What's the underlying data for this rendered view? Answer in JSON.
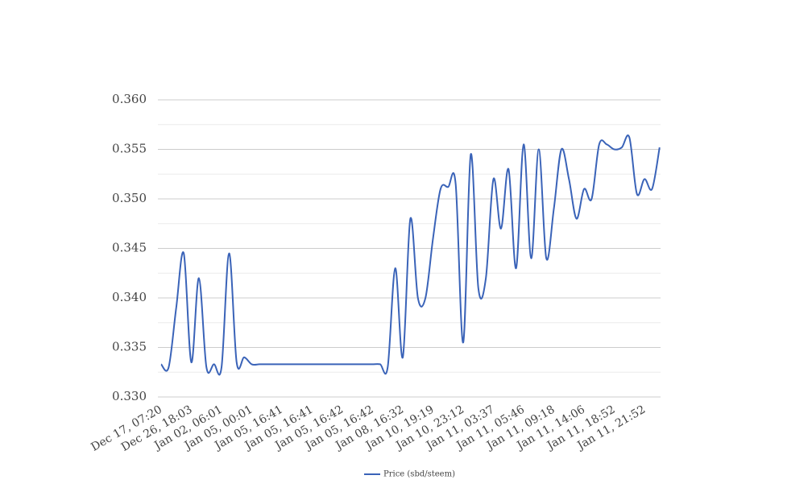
{
  "chart_data": {
    "type": "line",
    "categories": [
      "Dec 17, 07:20",
      null,
      null,
      null,
      "Dec 26, 18:03",
      null,
      null,
      null,
      "Jan 02, 06:01",
      null,
      null,
      null,
      "Jan 05, 00:01",
      null,
      null,
      null,
      "Jan 05, 16:41",
      null,
      null,
      null,
      "Jan 05, 16:41",
      null,
      null,
      null,
      "Jan 05, 16:42",
      null,
      null,
      null,
      "Jan 05, 16:42",
      null,
      null,
      null,
      "Jan 08, 16:32",
      null,
      null,
      null,
      "Jan 10, 19:19",
      null,
      null,
      null,
      "Jan 10, 23:12",
      null,
      null,
      null,
      "Jan 11, 03:37",
      null,
      null,
      null,
      "Jan 11, 05:46",
      null,
      null,
      null,
      "Jan 11, 09:18",
      null,
      null,
      null,
      "Jan 11, 14:06",
      null,
      null,
      null,
      "Jan 11, 18:52",
      null,
      null,
      null,
      "Jan 11, 21:52",
      null,
      null
    ],
    "series": [
      {
        "name": "Price (sbd/steem)",
        "color": "#3a63b8",
        "values": [
          0.3333,
          0.333,
          0.339,
          0.3445,
          0.3335,
          0.342,
          0.333,
          0.3333,
          0.333,
          0.3445,
          0.3335,
          0.334,
          0.3333,
          0.3333,
          0.3333,
          0.3333,
          0.3333,
          0.3333,
          0.3333,
          0.3333,
          0.3333,
          0.3333,
          0.3333,
          0.3333,
          0.3333,
          0.3333,
          0.3333,
          0.3333,
          0.3333,
          0.3333,
          0.333,
          0.343,
          0.334,
          0.348,
          0.34,
          0.34,
          0.346,
          0.351,
          0.3512,
          0.3515,
          0.3355,
          0.3545,
          0.341,
          0.342,
          0.352,
          0.347,
          0.353,
          0.343,
          0.3555,
          0.344,
          0.355,
          0.344,
          0.349,
          0.355,
          0.352,
          0.348,
          0.351,
          0.35,
          0.3555,
          0.3555,
          0.355,
          0.3552,
          0.3562,
          0.3505,
          0.352,
          0.351,
          0.3552
        ]
      }
    ],
    "ylim": [
      0.33,
      0.36
    ],
    "yticks": [
      {
        "value": 0.33,
        "label": "0.330"
      },
      {
        "value": 0.335,
        "label": "0.335"
      },
      {
        "value": 0.34,
        "label": "0.340"
      },
      {
        "value": 0.345,
        "label": "0.345"
      },
      {
        "value": 0.35,
        "label": "0.350"
      },
      {
        "value": 0.355,
        "label": "0.355"
      },
      {
        "value": 0.36,
        "label": "0.360"
      }
    ],
    "minor_yticks": [
      0.3325,
      0.3375,
      0.3425,
      0.3475,
      0.3525,
      0.3575
    ],
    "grid": true,
    "legend": "bottom"
  }
}
